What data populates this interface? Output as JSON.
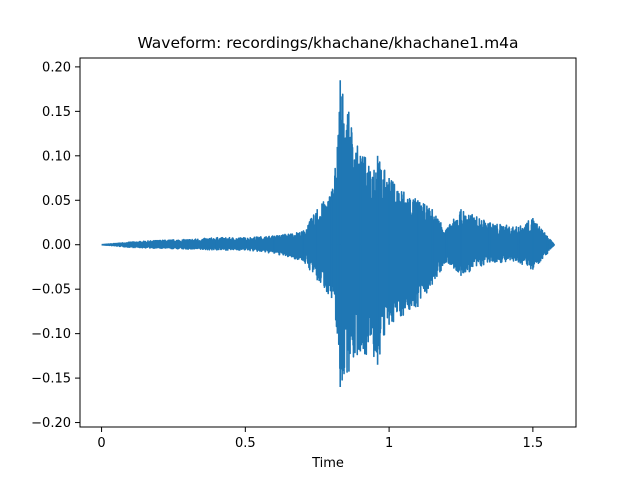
{
  "chart_data": {
    "type": "line",
    "title": "Waveform: recordings/khachane/khachane1.m4a",
    "xlabel": "Time",
    "ylabel": "",
    "xlim": [
      -0.075,
      1.65
    ],
    "ylim": [
      -0.205,
      0.21
    ],
    "x_ticks": [
      0,
      0.5,
      1,
      1.5
    ],
    "x_tick_labels": [
      "0",
      "0.5",
      "1",
      "1.5"
    ],
    "y_ticks": [
      -0.2,
      -0.15,
      -0.1,
      -0.05,
      0.0,
      0.05,
      0.1,
      0.15,
      0.2
    ],
    "y_tick_labels": [
      "−0.20",
      "−0.15",
      "−0.10",
      "−0.05",
      "0.00",
      "0.05",
      "0.10",
      "0.15",
      "0.20"
    ],
    "grid": false,
    "legend": "none",
    "series_color": "#1f77b4",
    "duration_s": 1.575,
    "envelope": [
      {
        "t": 0.0,
        "max": 0.0,
        "min": 0.0
      },
      {
        "t": 0.1,
        "max": 0.003,
        "min": -0.003
      },
      {
        "t": 0.2,
        "max": 0.005,
        "min": -0.004
      },
      {
        "t": 0.3,
        "max": 0.006,
        "min": -0.005
      },
      {
        "t": 0.4,
        "max": 0.008,
        "min": -0.006
      },
      {
        "t": 0.5,
        "max": 0.008,
        "min": -0.006
      },
      {
        "t": 0.6,
        "max": 0.01,
        "min": -0.01
      },
      {
        "t": 0.7,
        "max": 0.015,
        "min": -0.018
      },
      {
        "t": 0.75,
        "max": 0.04,
        "min": -0.04
      },
      {
        "t": 0.8,
        "max": 0.06,
        "min": -0.06
      },
      {
        "t": 0.82,
        "max": 0.11,
        "min": -0.1
      },
      {
        "t": 0.83,
        "max": 0.185,
        "min": -0.16
      },
      {
        "t": 0.9,
        "max": 0.1,
        "min": -0.12
      },
      {
        "t": 0.96,
        "max": 0.1,
        "min": -0.135
      },
      {
        "t": 1.0,
        "max": 0.075,
        "min": -0.09
      },
      {
        "t": 1.1,
        "max": 0.05,
        "min": -0.07
      },
      {
        "t": 1.15,
        "max": 0.04,
        "min": -0.045
      },
      {
        "t": 1.2,
        "max": 0.018,
        "min": -0.02
      },
      {
        "t": 1.25,
        "max": 0.04,
        "min": -0.035
      },
      {
        "t": 1.35,
        "max": 0.025,
        "min": -0.02
      },
      {
        "t": 1.45,
        "max": 0.02,
        "min": -0.02
      },
      {
        "t": 1.5,
        "max": 0.03,
        "min": -0.028
      },
      {
        "t": 1.55,
        "max": 0.01,
        "min": -0.01
      },
      {
        "t": 1.575,
        "max": 0.0,
        "min": 0.0
      }
    ]
  }
}
